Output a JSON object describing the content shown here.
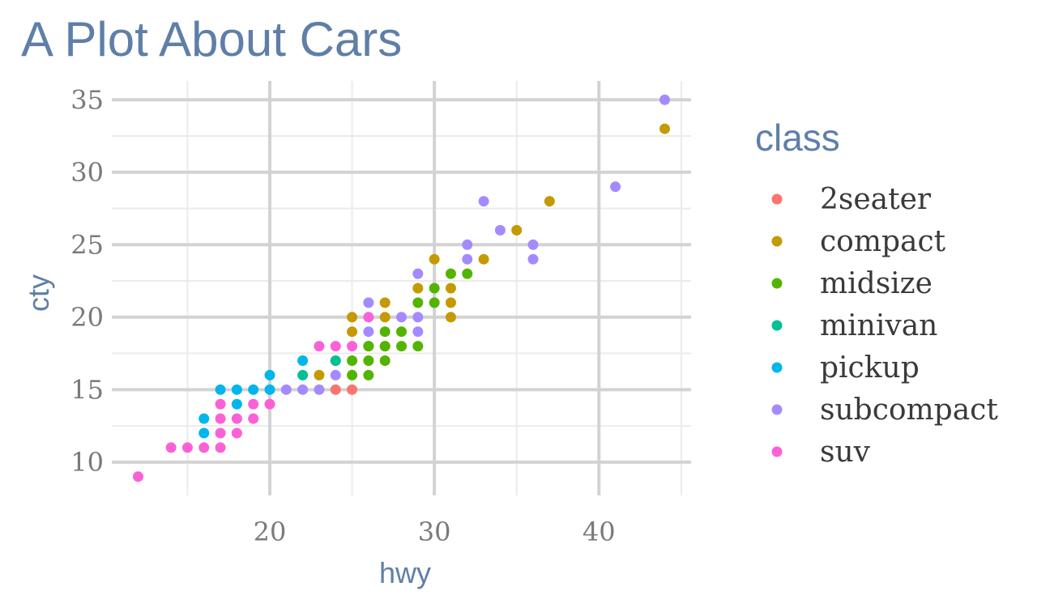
{
  "chart_data": {
    "type": "scatter",
    "title": "A Plot About Cars",
    "xlabel": "hwy",
    "ylabel": "cty",
    "xlim": [
      10.4,
      45.6
    ],
    "ylim": [
      7.7,
      36.3
    ],
    "x_ticks": [
      20,
      30,
      40
    ],
    "y_ticks": [
      10,
      15,
      20,
      25,
      30,
      35
    ],
    "grid": true,
    "legend": {
      "title": "class",
      "placement": "right"
    },
    "series": [
      {
        "name": "2seater",
        "color": "#f8766d",
        "points": [
          [
            24,
            15
          ],
          [
            25,
            15
          ]
        ]
      },
      {
        "name": "compact",
        "color": "#c49a00",
        "points": [
          [
            23,
            16
          ],
          [
            24,
            17
          ],
          [
            25,
            19
          ],
          [
            25,
            20
          ],
          [
            26,
            18
          ],
          [
            27,
            18
          ],
          [
            27,
            20
          ],
          [
            27,
            21
          ],
          [
            29,
            22
          ],
          [
            30,
            24
          ],
          [
            31,
            20
          ],
          [
            31,
            21
          ],
          [
            31,
            22
          ],
          [
            33,
            24
          ],
          [
            35,
            26
          ],
          [
            37,
            28
          ],
          [
            44,
            33
          ]
        ]
      },
      {
        "name": "midsize",
        "color": "#53b400",
        "points": [
          [
            25,
            16
          ],
          [
            25,
            17
          ],
          [
            26,
            16
          ],
          [
            26,
            17
          ],
          [
            26,
            18
          ],
          [
            27,
            17
          ],
          [
            27,
            18
          ],
          [
            27,
            19
          ],
          [
            28,
            18
          ],
          [
            28,
            19
          ],
          [
            29,
            18
          ],
          [
            29,
            21
          ],
          [
            30,
            21
          ],
          [
            30,
            22
          ],
          [
            31,
            23
          ],
          [
            32,
            23
          ]
        ]
      },
      {
        "name": "minivan",
        "color": "#00c094",
        "points": [
          [
            22,
            16
          ],
          [
            24,
            17
          ]
        ]
      },
      {
        "name": "pickup",
        "color": "#00b6eb",
        "points": [
          [
            16,
            12
          ],
          [
            16,
            13
          ],
          [
            17,
            15
          ],
          [
            18,
            14
          ],
          [
            18,
            15
          ],
          [
            19,
            15
          ],
          [
            20,
            15
          ],
          [
            20,
            16
          ],
          [
            22,
            17
          ]
        ]
      },
      {
        "name": "subcompact",
        "color": "#a58aff",
        "points": [
          [
            21,
            15
          ],
          [
            22,
            15
          ],
          [
            23,
            15
          ],
          [
            24,
            16
          ],
          [
            26,
            19
          ],
          [
            26,
            21
          ],
          [
            28,
            20
          ],
          [
            29,
            19
          ],
          [
            29,
            20
          ],
          [
            29,
            23
          ],
          [
            32,
            24
          ],
          [
            32,
            25
          ],
          [
            33,
            28
          ],
          [
            34,
            26
          ],
          [
            36,
            24
          ],
          [
            36,
            25
          ],
          [
            41,
            29
          ],
          [
            44,
            35
          ]
        ]
      },
      {
        "name": "suv",
        "color": "#fb61d7",
        "points": [
          [
            12,
            9
          ],
          [
            14,
            11
          ],
          [
            15,
            11
          ],
          [
            16,
            11
          ],
          [
            17,
            11
          ],
          [
            17,
            12
          ],
          [
            17,
            13
          ],
          [
            17,
            14
          ],
          [
            18,
            12
          ],
          [
            18,
            13
          ],
          [
            19,
            13
          ],
          [
            19,
            14
          ],
          [
            20,
            14
          ],
          [
            23,
            18
          ],
          [
            24,
            18
          ],
          [
            25,
            18
          ],
          [
            26,
            20
          ]
        ]
      }
    ]
  },
  "colors": {
    "title": "#5f7fa7",
    "grid_major": "#d3d3d3",
    "grid_minor": "#ebebeb"
  }
}
